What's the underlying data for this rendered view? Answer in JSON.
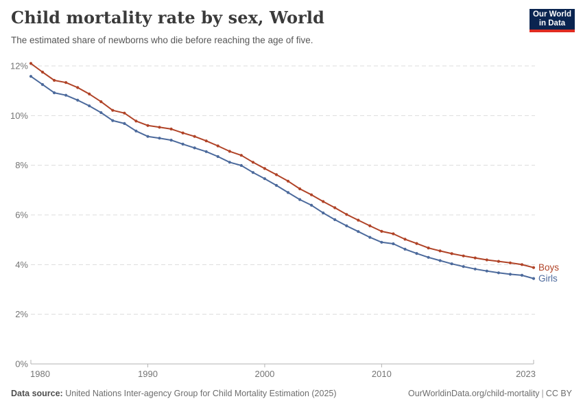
{
  "header": {
    "title": "Child mortality rate by sex, World",
    "subtitle": "The estimated share of newborns who die before reaching the age of five.",
    "logo": {
      "line1": "Our World",
      "line2": "in Data"
    }
  },
  "footer": {
    "source_label": "Data source:",
    "source_text": "United Nations Inter-agency Group for Child Mortality Estimation (2025)",
    "link_text": "OurWorldinData.org/child-mortality",
    "separator": "|",
    "license": "CC BY"
  },
  "chart_data": {
    "type": "line",
    "title": "Child mortality rate by sex, World",
    "xlabel": "",
    "ylabel": "",
    "unit": "%",
    "xlim": [
      1980,
      2023
    ],
    "ylim": [
      0,
      12
    ],
    "x_ticks": [
      1980,
      1990,
      2000,
      2010,
      2023
    ],
    "y_ticks": [
      0,
      2,
      4,
      6,
      8,
      10,
      12
    ],
    "grid": "horizontal-dashed",
    "legend_position": "line-end-labels",
    "x": [
      1980,
      1981,
      1982,
      1983,
      1984,
      1985,
      1986,
      1987,
      1988,
      1989,
      1990,
      1991,
      1992,
      1993,
      1994,
      1995,
      1996,
      1997,
      1998,
      1999,
      2000,
      2001,
      2002,
      2003,
      2004,
      2005,
      2006,
      2007,
      2008,
      2009,
      2010,
      2011,
      2012,
      2013,
      2014,
      2015,
      2016,
      2017,
      2018,
      2019,
      2020,
      2021,
      2022,
      2023
    ],
    "series": [
      {
        "name": "Boys",
        "color": "#b04327",
        "values": [
          12.1,
          11.75,
          11.42,
          11.33,
          11.13,
          10.87,
          10.56,
          10.21,
          10.1,
          9.78,
          9.6,
          9.53,
          9.46,
          9.3,
          9.16,
          8.98,
          8.78,
          8.56,
          8.4,
          8.12,
          7.87,
          7.62,
          7.36,
          7.05,
          6.81,
          6.54,
          6.29,
          6.02,
          5.79,
          5.56,
          5.34,
          5.24,
          5.02,
          4.85,
          4.67,
          4.55,
          4.44,
          4.35,
          4.27,
          4.19,
          4.13,
          4.07,
          4.0,
          3.88
        ]
      },
      {
        "name": "Girls",
        "color": "#4c6a9c",
        "values": [
          11.58,
          11.25,
          10.92,
          10.82,
          10.62,
          10.39,
          10.12,
          9.8,
          9.68,
          9.38,
          9.16,
          9.09,
          9.01,
          8.85,
          8.7,
          8.55,
          8.35,
          8.12,
          7.99,
          7.71,
          7.46,
          7.19,
          6.9,
          6.62,
          6.39,
          6.08,
          5.81,
          5.56,
          5.33,
          5.1,
          4.9,
          4.84,
          4.62,
          4.45,
          4.29,
          4.16,
          4.03,
          3.92,
          3.82,
          3.74,
          3.67,
          3.61,
          3.57,
          3.44
        ]
      }
    ]
  }
}
